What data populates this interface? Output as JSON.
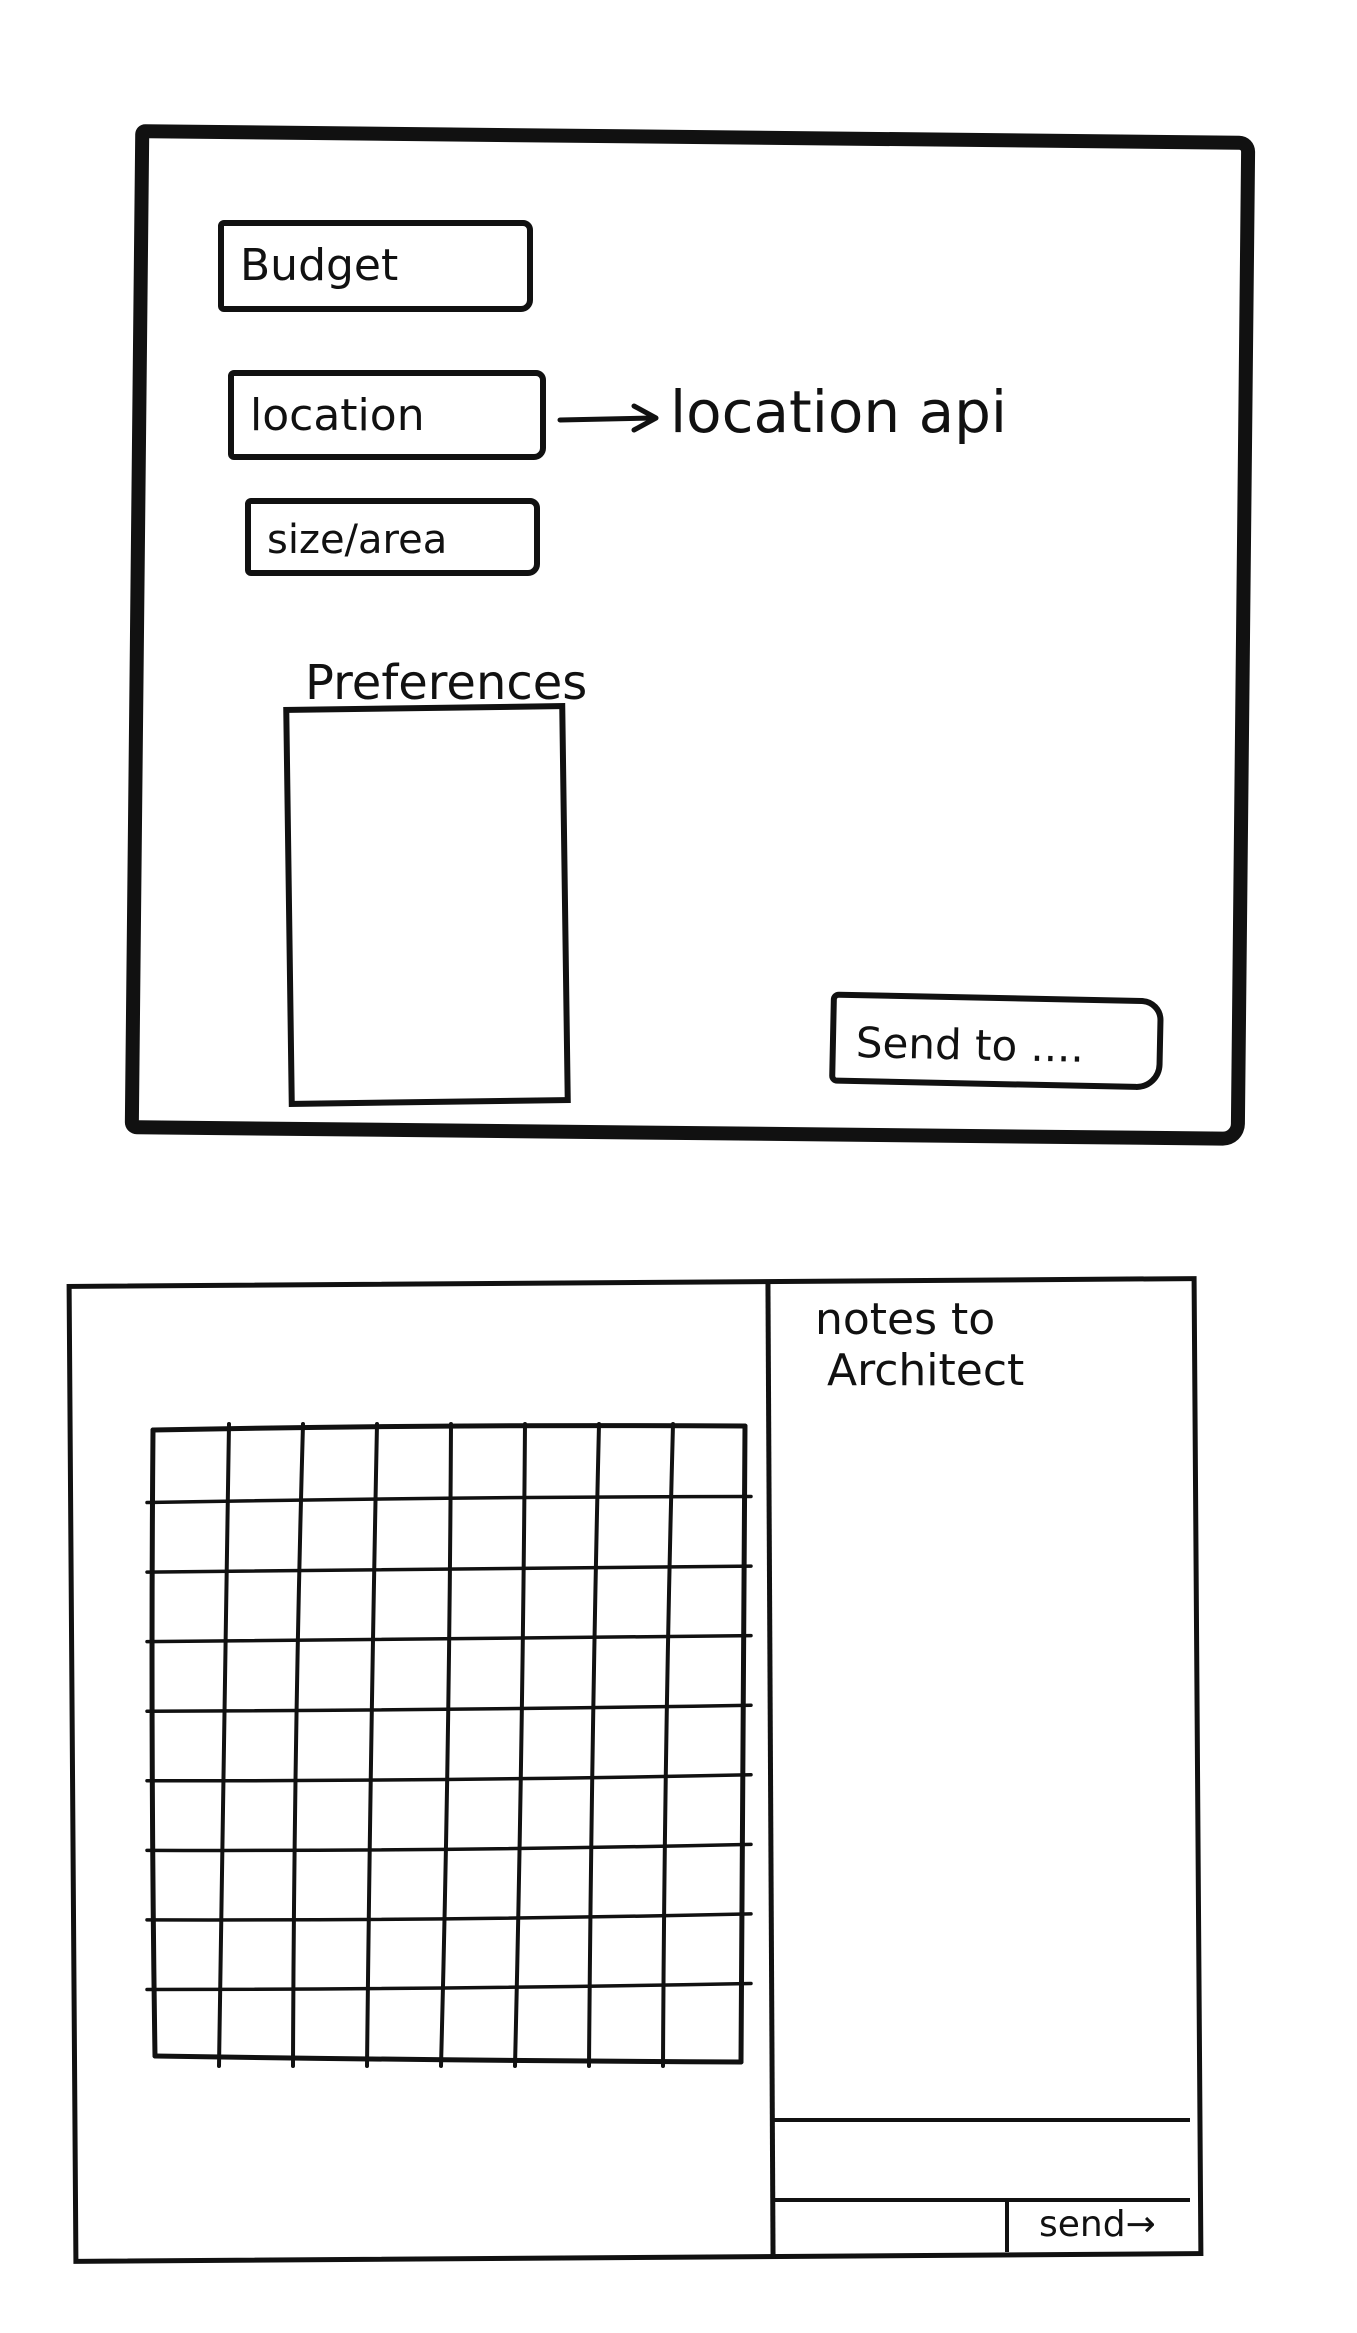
{
  "form_sketch": {
    "budget_field": "Budget",
    "location_field": "location",
    "location_note": "location api",
    "size_field": "size/area",
    "preferences_label": "Preferences",
    "send_to_button": "Send to ...."
  },
  "editor_sketch": {
    "notes_title_line1": "notes to",
    "notes_title_line2": "Architect",
    "send_button": "send→",
    "grid_canvas": {
      "columns": 8,
      "rows": 9
    }
  },
  "colors": {
    "ink": "#111111",
    "paper": "#ffffff"
  }
}
